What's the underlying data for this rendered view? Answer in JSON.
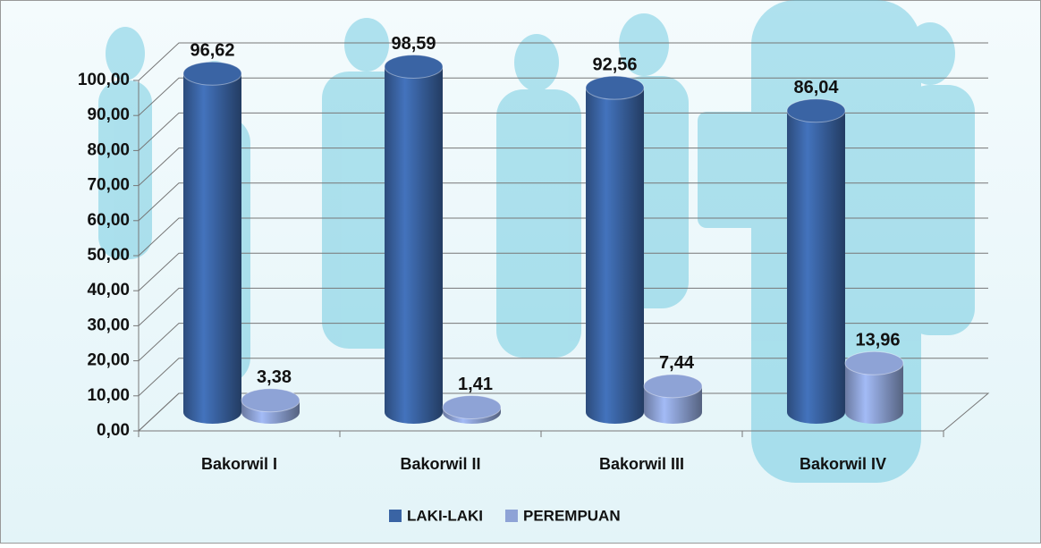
{
  "chart_data": {
    "type": "bar3d",
    "categories": [
      "Bakorwil I",
      "Bakorwil II",
      "Bakorwil III",
      "Bakorwil IV"
    ],
    "series": [
      {
        "name": "LAKI-LAKI",
        "color": "#3a64a4",
        "values": [
          96.62,
          98.59,
          92.56,
          86.04
        ],
        "value_labels": [
          "96,62",
          "98,59",
          "92,56",
          "86,04"
        ]
      },
      {
        "name": "PEREMPUAN",
        "color": "#8ea3d6",
        "values": [
          3.38,
          1.41,
          7.44,
          13.96
        ],
        "value_labels": [
          "3,38",
          "1,41",
          "7,44",
          "13,96"
        ]
      }
    ],
    "ylim": [
      0,
      100
    ],
    "yticks": [
      {
        "value": 0,
        "label": "0,00"
      },
      {
        "value": 10,
        "label": "10,00"
      },
      {
        "value": 20,
        "label": "20,00"
      },
      {
        "value": 30,
        "label": "30,00"
      },
      {
        "value": 40,
        "label": "40,00"
      },
      {
        "value": 50,
        "label": "50,00"
      },
      {
        "value": 60,
        "label": "60,00"
      },
      {
        "value": 70,
        "label": "70,00"
      },
      {
        "value": 80,
        "label": "80,00"
      },
      {
        "value": 90,
        "label": "90,00"
      },
      {
        "value": 100,
        "label": "100,00"
      }
    ],
    "grid": true,
    "legend": "bottom"
  }
}
